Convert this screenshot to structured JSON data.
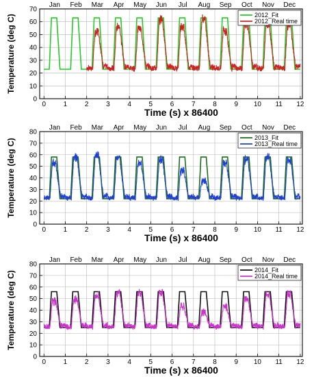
{
  "chart_data": [
    {
      "type": "line",
      "xlabel": "Time (s) x 86400",
      "ylabel": "Temperature (deg C)",
      "xlim": [
        -0.2,
        12.1
      ],
      "ylim": [
        0,
        70
      ],
      "xticks": [
        0,
        1,
        2,
        3,
        4,
        5,
        6,
        7,
        8,
        9,
        10,
        11,
        12
      ],
      "yticks": [
        0,
        10,
        20,
        30,
        40,
        50,
        60,
        70
      ],
      "months": [
        "Jan",
        "Feb",
        "Mar",
        "Apr",
        "May",
        "Jun",
        "Jul",
        "Aug",
        "Sep",
        "Oct",
        "Nov",
        "Dec"
      ],
      "grid": true,
      "legend_position": "top-right",
      "base": 23,
      "series": [
        {
          "name": "2012_Fit",
          "color": "#22cc22",
          "kind": "fit",
          "peak": 63
        },
        {
          "name": "2012_Real time",
          "color": "#cc2222",
          "kind": "real",
          "peaks": [
            null,
            null,
            55,
            58,
            57,
            64,
            58,
            64,
            55,
            60,
            60,
            60
          ]
        }
      ]
    },
    {
      "type": "line",
      "xlabel": "Time (s) x 86400",
      "ylabel": "Temperature (deg C)",
      "xlim": [
        -0.2,
        12.1
      ],
      "ylim": [
        0,
        80
      ],
      "xticks": [
        0,
        1,
        2,
        3,
        4,
        5,
        6,
        7,
        8,
        9,
        10,
        11,
        12
      ],
      "yticks": [
        0,
        10,
        20,
        30,
        40,
        50,
        60,
        70,
        80
      ],
      "months": [
        "Jan",
        "Feb",
        "Mar",
        "Apr",
        "May",
        "Jun",
        "Jul",
        "Aug",
        "Sep",
        "Oct",
        "Nov",
        "Dec"
      ],
      "grid": true,
      "legend_position": "top-right",
      "base": 22,
      "series": [
        {
          "name": "2013_Fit",
          "color": "#1a6e1a",
          "kind": "fit",
          "peak": 58
        },
        {
          "name": "2013_Real time",
          "color": "#1f3fd6",
          "kind": "real",
          "peaks": [
            55,
            60,
            62,
            60,
            55,
            58,
            48,
            40,
            55,
            58,
            60,
            58
          ]
        }
      ]
    },
    {
      "type": "line",
      "xlabel": "Time (s) x 86400",
      "ylabel": "Temperature (deg C)",
      "xlim": [
        -0.2,
        12.1
      ],
      "ylim": [
        0,
        80
      ],
      "xticks": [
        0,
        1,
        2,
        3,
        4,
        5,
        6,
        7,
        8,
        9,
        10,
        11,
        12
      ],
      "yticks": [
        0,
        10,
        20,
        30,
        40,
        50,
        60,
        70,
        80
      ],
      "months": [
        "Jan",
        "Feb",
        "Mar",
        "Apr",
        "May",
        "Jun",
        "Jul",
        "Aug",
        "Sep",
        "Oct",
        "Nov",
        "Dec"
      ],
      "grid": true,
      "legend_position": "top-right",
      "base": 25,
      "series": [
        {
          "name": "2014_Fit",
          "color": "#111111",
          "kind": "fit",
          "peak": 56
        },
        {
          "name": "2014_Real time",
          "color": "#cc33cc",
          "kind": "real",
          "peaks": [
            50,
            52,
            55,
            57,
            57,
            58,
            45,
            40,
            45,
            52,
            56,
            56
          ]
        }
      ]
    }
  ]
}
